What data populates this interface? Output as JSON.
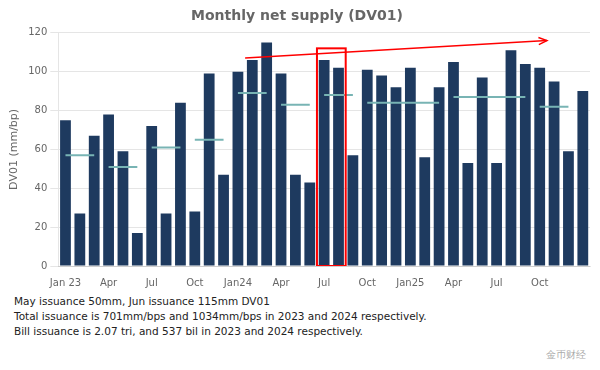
{
  "chart_data": {
    "type": "bar",
    "title": "Monthly net supply (DV01)",
    "ylabel": "DV01 (mm/bp)",
    "categories": [
      "Jan 23",
      null,
      null,
      "Apr",
      null,
      null,
      "Jul",
      null,
      null,
      "Oct",
      null,
      null,
      "Jan24",
      null,
      null,
      "Apr",
      null,
      null,
      "Jul",
      null,
      null,
      "Oct",
      null,
      null,
      "Jan25",
      null,
      null,
      "Apr",
      null,
      null,
      "Jul",
      null,
      null,
      "Oct",
      null,
      null,
      null
    ],
    "series": [
      {
        "type": "bar",
        "color": "#1e3a5f",
        "values": [
          75,
          27,
          67,
          78,
          59,
          17,
          72,
          27,
          84,
          28,
          99,
          47,
          100,
          106,
          115,
          99,
          47,
          43,
          106,
          102,
          57,
          101,
          98,
          92,
          102,
          56,
          92,
          105,
          53,
          97,
          53,
          111,
          104,
          102,
          95,
          59,
          90
        ]
      },
      {
        "type": "line",
        "color": "#78b4b4",
        "values": [
          57,
          57,
          57,
          51,
          51,
          51,
          61,
          61,
          61,
          65,
          65,
          65,
          89,
          89,
          89,
          83,
          83,
          83,
          88,
          88,
          88,
          84,
          84,
          84,
          84,
          84,
          84,
          87,
          87,
          87,
          87,
          87,
          87,
          82,
          82,
          82,
          null
        ]
      }
    ],
    "highlight": {
      "start": 18,
      "end": 19,
      "top": 112,
      "color": "red"
    },
    "arrow": {
      "x0": 12.5,
      "y0": 107,
      "x1": 33.5,
      "y1": 116,
      "color": "red"
    },
    "ylim": [
      0,
      120
    ],
    "yticks": [
      0,
      20,
      40,
      60,
      80,
      100,
      120
    ],
    "grid": true,
    "footnotes": [
      "May issuance 50mm, Jun issuance 115mm DV01",
      "Total issuance is 701mm/bps and 1034mm/bps in 2023 and 2024 respectively.",
      "Bill issuance is 2.07 tri, and 537 bil in 2023 and 2024 respectively."
    ],
    "logo": "金币财经"
  }
}
